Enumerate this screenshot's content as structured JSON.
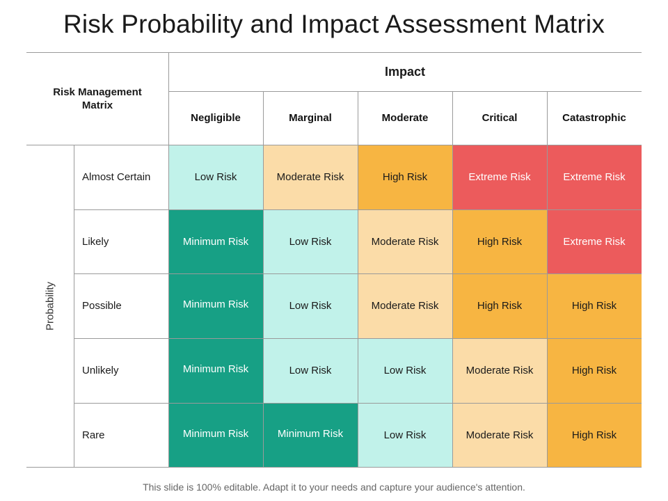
{
  "title": "Risk Probability and Impact  Assessment Matrix",
  "matrix_label": "Risk Management Matrix",
  "impact_label": "Impact",
  "probability_label": "Probability",
  "impact_levels": [
    "Negligible",
    "Marginal",
    "Moderate",
    "Critical",
    "Catastrophic"
  ],
  "probability_levels": [
    "Almost Certain",
    "Likely",
    "Possible",
    "Unlikely",
    "Rare"
  ],
  "cells": [
    [
      "Low Risk",
      "Moderate Risk",
      "High Risk",
      "Extreme Risk",
      "Extreme Risk"
    ],
    [
      "Minimum Risk",
      "Low Risk",
      "Moderate Risk",
      "High Risk",
      "Extreme Risk"
    ],
    [
      "Minimum Risk",
      "Low Risk",
      "Moderate Risk",
      "High Risk",
      "High Risk"
    ],
    [
      "Minimum Risk",
      "Low Risk",
      "Low Risk",
      "Moderate Risk",
      "High Risk"
    ],
    [
      "Minimum Risk",
      "Minimum Risk",
      "Low Risk",
      "Moderate Risk",
      "High Risk"
    ]
  ],
  "risk_colors": {
    "Minimum Risk": {
      "bg": "#17a085",
      "fg": "#ffffff"
    },
    "Low Risk": {
      "bg": "#c1f2ea",
      "fg": "#1a1a1a"
    },
    "Moderate Risk": {
      "bg": "#fbdca8",
      "fg": "#1a1a1a"
    },
    "High Risk": {
      "bg": "#f7b542",
      "fg": "#1a1a1a"
    },
    "Extreme Risk": {
      "bg": "#ec5b5c",
      "fg": "#ffffff"
    }
  },
  "footer": "This slide is 100% editable. Adapt it to your needs and capture your audience's attention."
}
